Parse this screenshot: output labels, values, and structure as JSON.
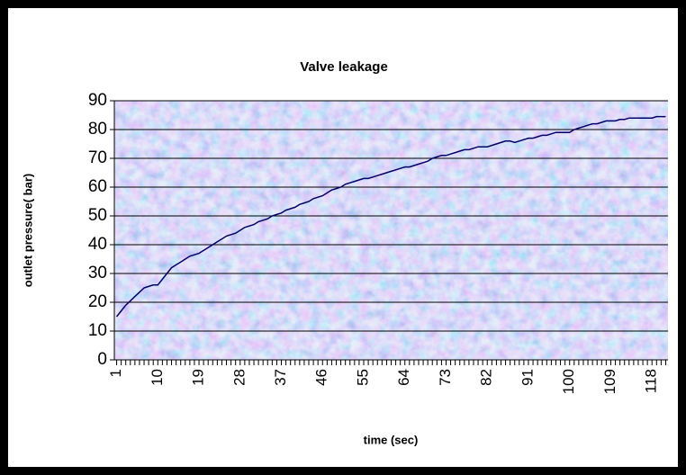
{
  "chart_data": {
    "type": "line",
    "title": "Valve leakage",
    "xlabel": "time (sec)",
    "ylabel": "outlet pressure( bar)",
    "x": [
      1,
      2,
      3,
      4,
      5,
      6,
      7,
      8,
      9,
      10,
      11,
      12,
      13,
      14,
      15,
      16,
      17,
      18,
      19,
      20,
      21,
      22,
      23,
      24,
      25,
      26,
      27,
      28,
      29,
      30,
      31,
      32,
      33,
      34,
      35,
      36,
      37,
      38,
      39,
      40,
      41,
      42,
      43,
      44,
      45,
      46,
      47,
      48,
      49,
      50,
      51,
      52,
      53,
      54,
      55,
      56,
      57,
      58,
      59,
      60,
      61,
      62,
      63,
      64,
      65,
      66,
      67,
      68,
      69,
      70,
      71,
      72,
      73,
      74,
      75,
      76,
      77,
      78,
      79,
      80,
      81,
      82,
      83,
      84,
      85,
      86,
      87,
      88,
      89,
      90,
      91,
      92,
      93,
      94,
      95,
      96,
      97,
      98,
      99,
      100,
      101,
      102,
      103,
      104,
      105,
      106,
      107,
      108,
      109,
      110,
      111,
      112,
      113,
      114,
      115,
      116,
      117,
      118,
      119,
      120,
      121
    ],
    "values": [
      15,
      17,
      19,
      20.5,
      22,
      23.5,
      25,
      25.5,
      26,
      26,
      28,
      30,
      32,
      33,
      34,
      35,
      36,
      36.5,
      37,
      38,
      39,
      40,
      41,
      42,
      43,
      43.5,
      44,
      45,
      46,
      46.5,
      47,
      48,
      48.5,
      49,
      50,
      50.5,
      51,
      52,
      52.5,
      53,
      54,
      54.5,
      55,
      56,
      56.5,
      57,
      58,
      59,
      59.5,
      60,
      61,
      61.5,
      62,
      62.5,
      63,
      63,
      63.5,
      64,
      64.5,
      65,
      65.5,
      66,
      66.5,
      67,
      67,
      67.5,
      68,
      68.5,
      69,
      70,
      70.5,
      71,
      71,
      71.5,
      72,
      72.5,
      73,
      73,
      73.5,
      74,
      74,
      74,
      74.5,
      75,
      75.5,
      76,
      76,
      75.5,
      76,
      76.5,
      77,
      77,
      77.5,
      78,
      78,
      78.5,
      79,
      79,
      79,
      79,
      80,
      80.5,
      81,
      81.5,
      82,
      82,
      82.5,
      83,
      83,
      83,
      83.5,
      83.5,
      84,
      84,
      84,
      84,
      84,
      84,
      84.5,
      84.5,
      84.5
    ],
    "color": "#000066",
    "xlim": [
      0.5,
      121.5
    ],
    "xticks": [
      1,
      10,
      19,
      28,
      37,
      46,
      55,
      64,
      73,
      82,
      91,
      100,
      109,
      118
    ],
    "ylim": [
      0,
      90
    ],
    "yticks": [
      0,
      10,
      20,
      30,
      40,
      50,
      60,
      70,
      80,
      90
    ],
    "grid": true
  }
}
